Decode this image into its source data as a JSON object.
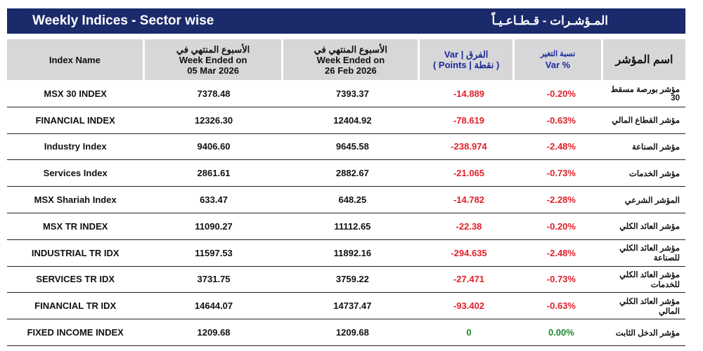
{
  "title": {
    "en": "Weekly Indices - Sector wise",
    "ar": "المـؤشـرات - قـطـاعـيـاً"
  },
  "headers": {
    "index_name": "Index Name",
    "current_ar": "الأسبوع المنتهي في",
    "current_en": "Week Ended on",
    "current_date": "05 Mar 2026",
    "previous_ar": "الأسبوع المنتهي في",
    "previous_en": "Week Ended on",
    "previous_date": "26 Feb 2026",
    "var_line1": "Var | الفرق",
    "var_line2": "( Points | نقطة )",
    "pct_ar": "نسبة التغير",
    "pct_en": "Var %",
    "index_name_ar": "اسم المؤشر"
  },
  "colors": {
    "title_bg": "#1b2a6b",
    "negative": "#e0202a",
    "zero": "#1a8a2a"
  },
  "rows": [
    {
      "name": "MSX 30 INDEX",
      "current": "7378.48",
      "previous": "7393.37",
      "var": "-14.889",
      "pct": "-0.20%",
      "name_ar": "مؤشر بورصة مسقط 30",
      "sign": "neg"
    },
    {
      "name": "FINANCIAL INDEX",
      "current": "12326.30",
      "previous": "12404.92",
      "var": "-78.619",
      "pct": "-0.63%",
      "name_ar": "مؤشر القطاع المالي",
      "sign": "neg"
    },
    {
      "name": "Industry Index",
      "current": "9406.60",
      "previous": "9645.58",
      "var": "-238.974",
      "pct": "-2.48%",
      "name_ar": "مؤشر الصناعة",
      "sign": "neg"
    },
    {
      "name": "Services Index",
      "current": "2861.61",
      "previous": "2882.67",
      "var": "-21.065",
      "pct": "-0.73%",
      "name_ar": "مؤشر الخدمات",
      "sign": "neg"
    },
    {
      "name": "MSX Shariah Index",
      "current": "633.47",
      "previous": "648.25",
      "var": "-14.782",
      "pct": "-2.28%",
      "name_ar": "المؤشر الشرعي",
      "sign": "neg"
    },
    {
      "name": "MSX TR INDEX",
      "current": "11090.27",
      "previous": "11112.65",
      "var": "-22.38",
      "pct": "-0.20%",
      "name_ar": "مؤشر العائد الكلي",
      "sign": "neg"
    },
    {
      "name": "INDUSTRIAL TR IDX",
      "current": "11597.53",
      "previous": "11892.16",
      "var": "-294.635",
      "pct": "-2.48%",
      "name_ar": "مؤشر العائد الكلي للصناعة",
      "sign": "neg"
    },
    {
      "name": "SERVICES TR IDX",
      "current": "3731.75",
      "previous": "3759.22",
      "var": "-27.471",
      "pct": "-0.73%",
      "name_ar": "مؤشر العائد الكلي للخدمات",
      "sign": "neg"
    },
    {
      "name": "FINANCIAL TR IDX",
      "current": "14644.07",
      "previous": "14737.47",
      "var": "-93.402",
      "pct": "-0.63%",
      "name_ar": "مؤشر العائد الكلي المالي",
      "sign": "neg"
    },
    {
      "name": "FIXED INCOME INDEX",
      "current": "1209.68",
      "previous": "1209.68",
      "var": "0",
      "pct": "0.00%",
      "name_ar": "مؤشر الدخل الثابت",
      "sign": "zero"
    }
  ]
}
